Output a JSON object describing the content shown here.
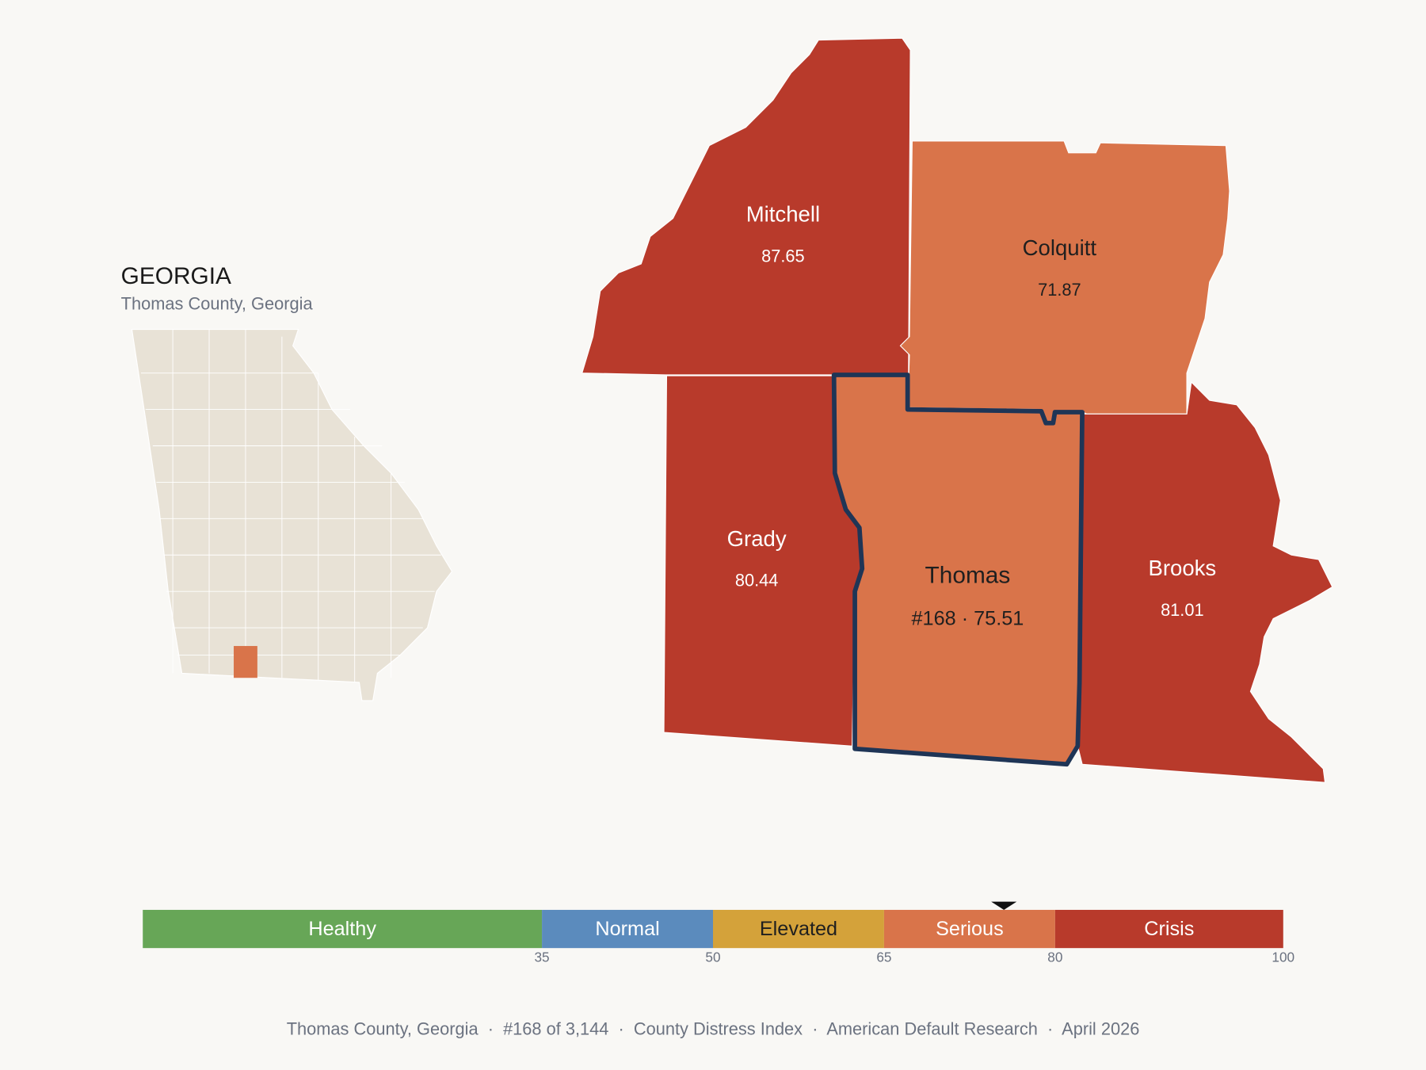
{
  "inset": {
    "title": "GEORGIA",
    "subtitle": "Thomas County, Georgia"
  },
  "map": {
    "counties": [
      {
        "name": "Mitchell",
        "value": 87.65
      },
      {
        "name": "Colquitt",
        "value": 71.87
      },
      {
        "name": "Grady",
        "value": 80.44
      },
      {
        "name": "Thomas",
        "value": 75.51,
        "value_label": "#168 · 75.51",
        "highlight": true
      },
      {
        "name": "Brooks",
        "value": 81.01
      }
    ]
  },
  "legend": {
    "xlim": [
      0,
      100
    ],
    "ticks": [
      35,
      50,
      65,
      80,
      100
    ],
    "bands": [
      {
        "name": "Healthy",
        "color": "#67a657",
        "text_color": "#ffffff"
      },
      {
        "name": "Normal",
        "color": "#5b8bbd",
        "text_color": "#ffffff"
      },
      {
        "name": "Elevated",
        "color": "#d4a23a",
        "text_color": "#1f1f1f"
      },
      {
        "name": "Serious",
        "color": "#d9744a",
        "text_color": "#ffffff"
      },
      {
        "name": "Crisis",
        "color": "#b83a2b",
        "text_color": "#ffffff"
      }
    ]
  },
  "footer": "Thomas County, Georgia  ·  #168 of 3,144  ·  County Distress Index  ·  American Default Research  ·  April 2026"
}
